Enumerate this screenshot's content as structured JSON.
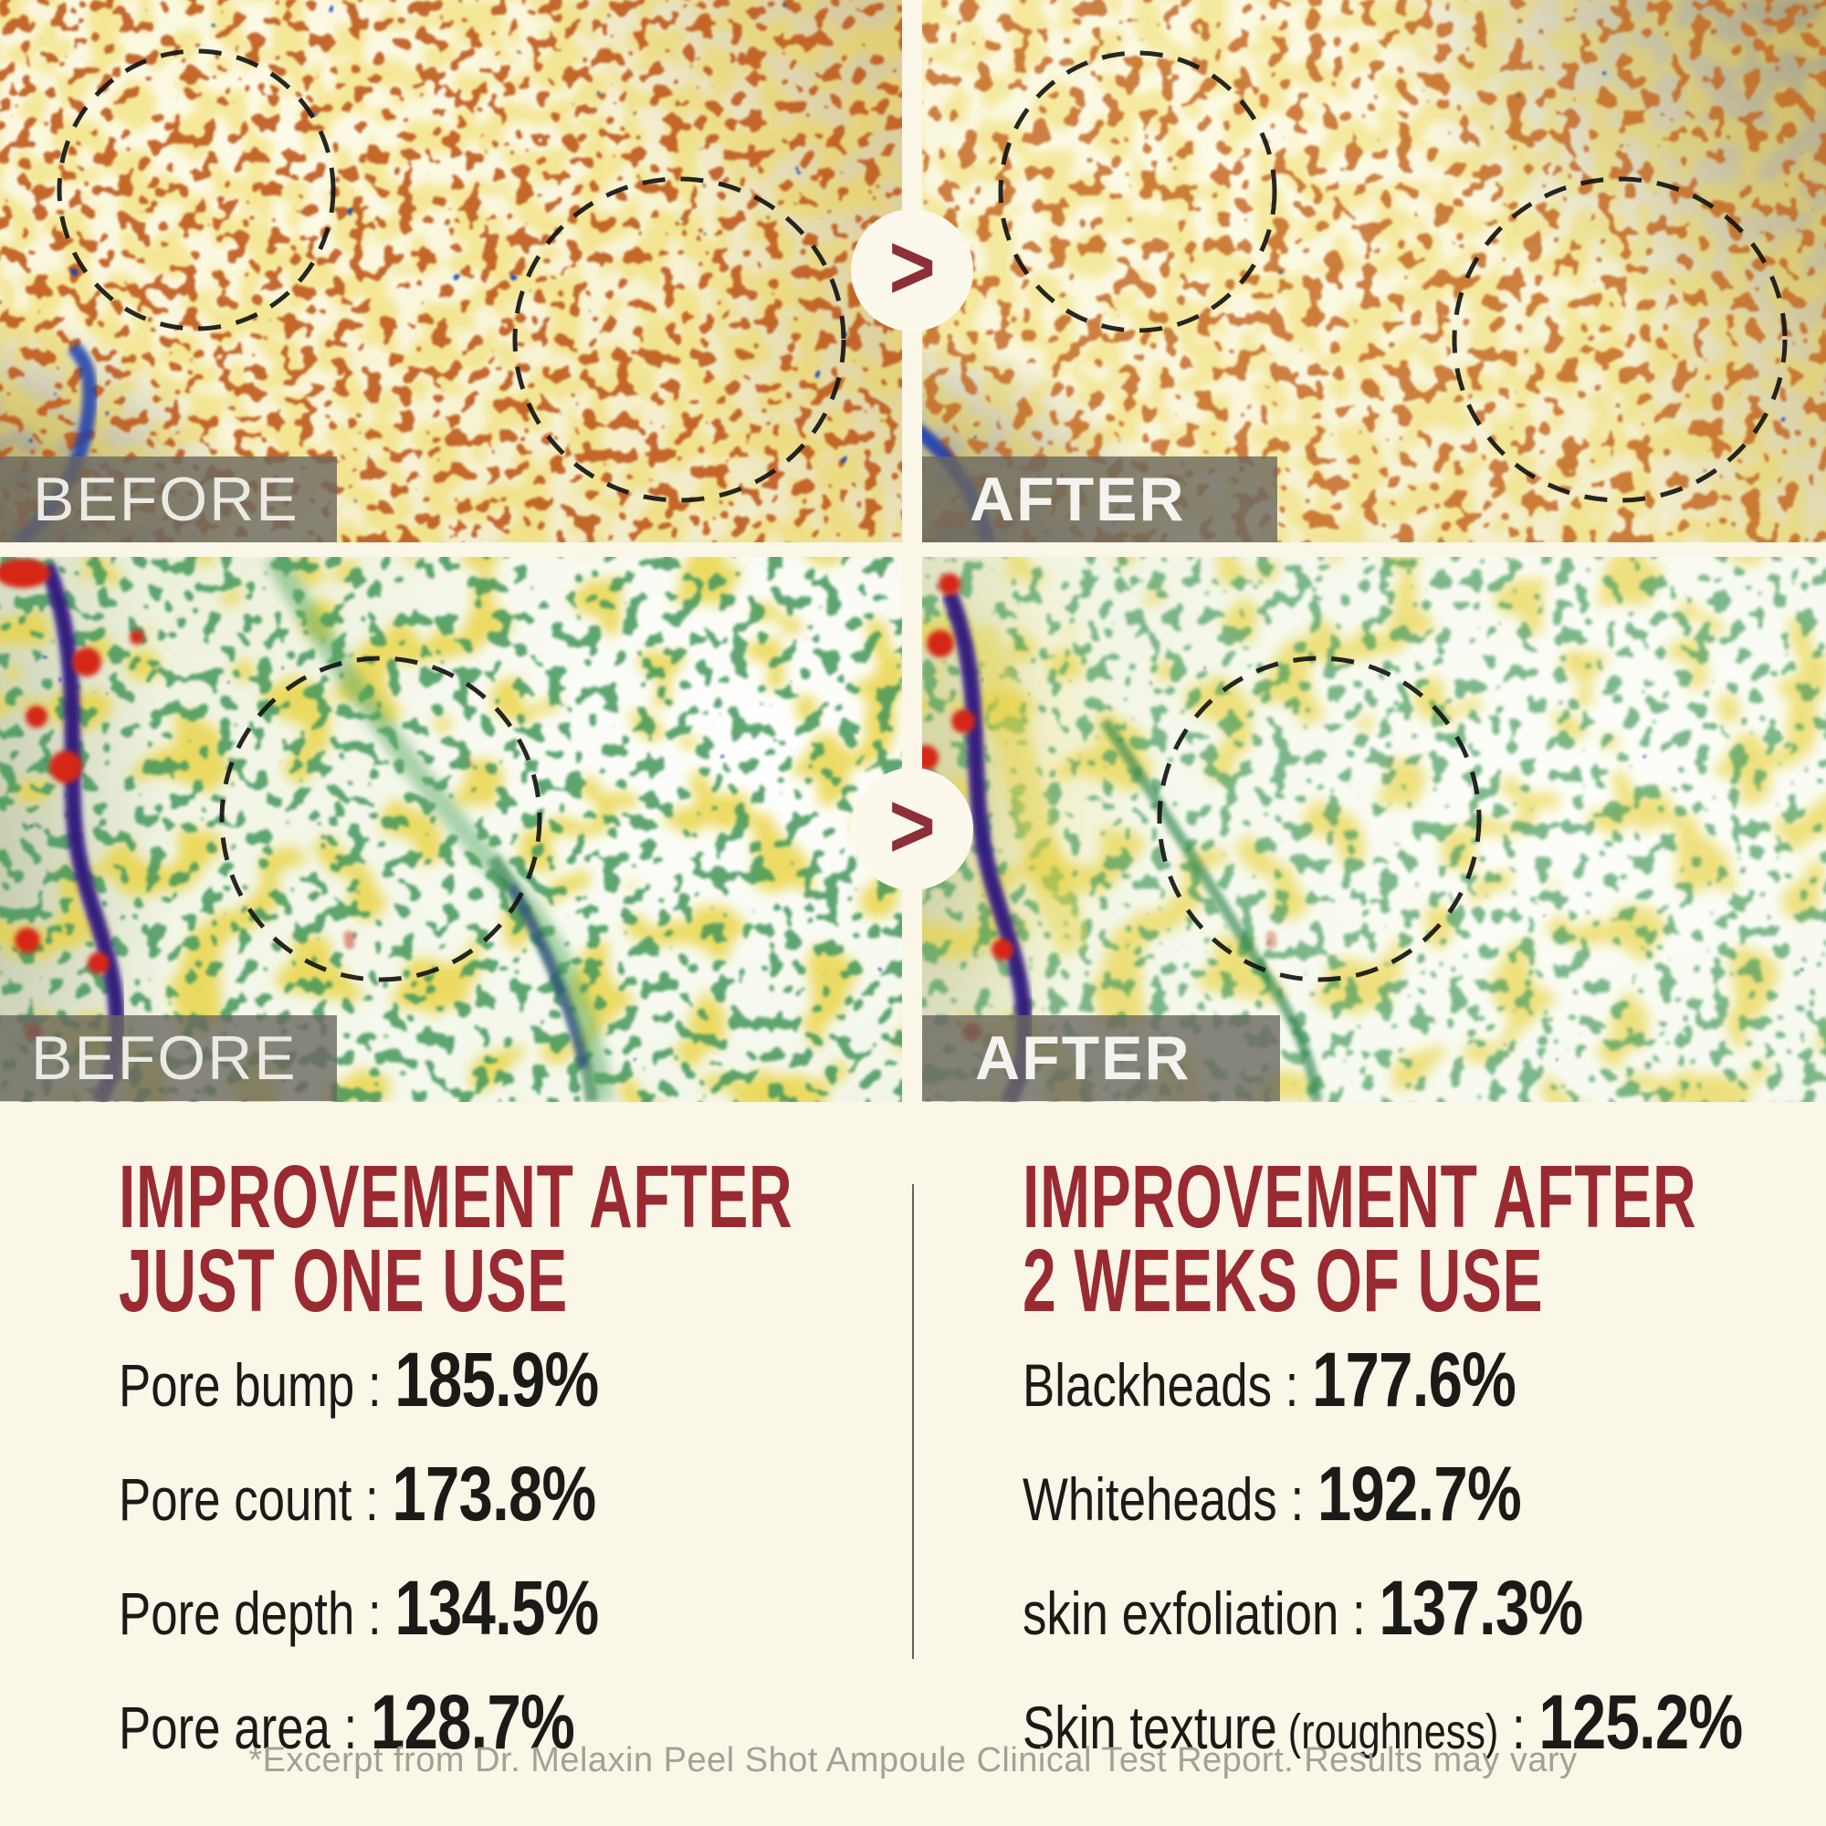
{
  "page": {
    "background_color": "#faf6e8"
  },
  "comparison": {
    "pairs": [
      {
        "before_label": "BEFORE",
        "after_label": "AFTER"
      },
      {
        "before_label": "BEFORE",
        "after_label": "AFTER"
      }
    ],
    "arrow_glyph": ">"
  },
  "results": {
    "separator": " : ",
    "left": {
      "heading_line1": "IMPROVEMENT AFTER",
      "heading_line2": "JUST ONE USE",
      "stats": [
        {
          "label": "Pore bump",
          "value": "185.9%"
        },
        {
          "label": "Pore count",
          "value": "173.8%"
        },
        {
          "label": "Pore depth",
          "value": "134.5%"
        },
        {
          "label": "Pore area",
          "value": "128.7%"
        }
      ]
    },
    "right": {
      "heading_line1": "IMPROVEMENT AFTER",
      "heading_line2": "2 WEEKS OF USE",
      "stats": [
        {
          "label": "Blackheads",
          "value": "177.6%"
        },
        {
          "label": "Whiteheads",
          "value": "192.7%"
        },
        {
          "label": "skin exfoliation",
          "value": "137.3%"
        },
        {
          "label": "Skin texture",
          "note": "(roughness)",
          "value": "125.2%"
        }
      ]
    }
  },
  "footer": {
    "disclaimer": "*Excerpt from Dr. Melaxin Peel Shot Ampoule Clinical Test Report. Results may vary"
  },
  "colors": {
    "background_cream": "#faf6e8",
    "accent_red": "#9a2a31",
    "arrow_red": "#8c2f37",
    "stat_text": "#1b1a18",
    "footer_gray": "#a3a096",
    "label_box": "rgba(106,104,96,0.8)",
    "label_text": "#eceae4",
    "divider": "#474747"
  }
}
